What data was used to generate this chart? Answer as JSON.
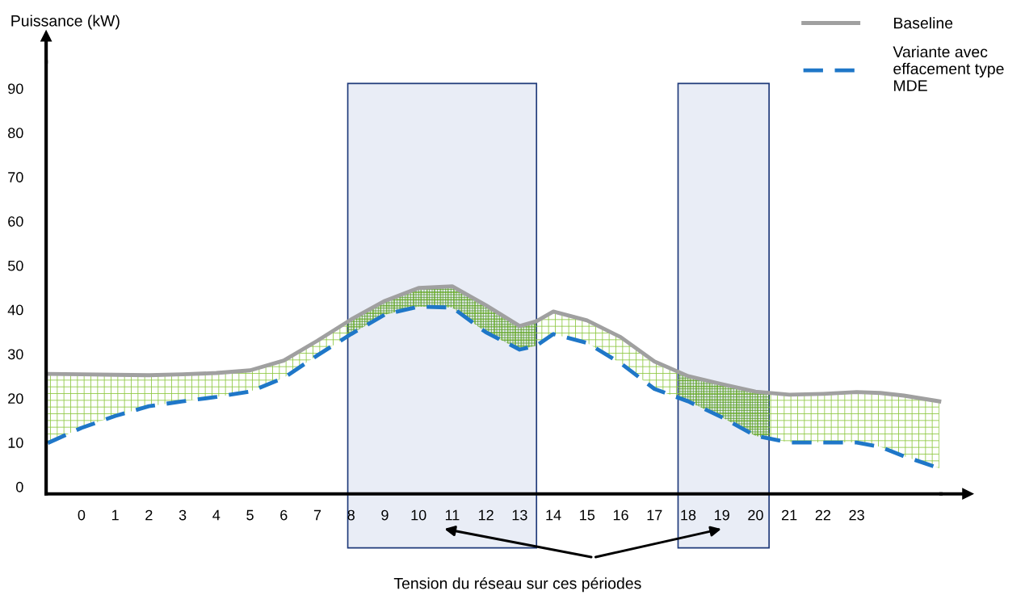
{
  "chart_data": {
    "type": "line",
    "ylabel": "Puissance (kW)",
    "xlim": [
      -1.05,
      25.5
    ],
    "ylim": [
      -1.6,
      96
    ],
    "xticks": [
      0,
      1,
      2,
      3,
      4,
      5,
      6,
      7,
      8,
      9,
      10,
      11,
      12,
      13,
      14,
      15,
      16,
      17,
      18,
      19,
      20,
      21,
      22,
      23
    ],
    "yticks": [
      0,
      10,
      20,
      30,
      40,
      50,
      60,
      70,
      80,
      90
    ],
    "grid": false,
    "legend": "top right",
    "bands": [
      {
        "axis": "x",
        "from": 7.9,
        "to": 13.5,
        "color": "#e9edf6"
      },
      {
        "axis": "x",
        "from": 17.7,
        "to": 20.4,
        "color": "#e9edf6"
      }
    ],
    "annotations": [
      "Tension du réseau sur ces périodes"
    ],
    "series": [
      {
        "name": "Baseline",
        "color": "#a0a0a0",
        "line_style": "solid",
        "x": [
          -1,
          0,
          1,
          2,
          3,
          4,
          5,
          6,
          7,
          8,
          9,
          10,
          11,
          12,
          13,
          13.5,
          14,
          15,
          16,
          17,
          18,
          19,
          20,
          21,
          22,
          23,
          23.7,
          24.4,
          25.45
        ],
        "values": [
          25.5,
          25.4,
          25.3,
          25.2,
          25.4,
          25.7,
          26.3,
          28.5,
          33,
          37.8,
          42,
          44.9,
          45.3,
          41,
          36.3,
          37.4,
          39.6,
          37.6,
          33.8,
          28.3,
          25,
          23.2,
          21.5,
          20.8,
          21,
          21.4,
          21.2,
          20.6,
          19.3
        ],
        "lower": [
          9.9,
          13.3,
          16,
          18.2,
          19.3,
          20.3,
          21.5,
          24.6,
          29.7,
          34.5,
          38.9,
          40.7,
          40.5,
          34.9,
          31,
          31.9,
          34.5,
          32.5,
          27.9,
          22.1,
          19.3,
          15.7,
          11.5,
          10,
          10,
          10,
          9,
          6.9,
          4.2
        ],
        "upper": [
          25.5,
          25.4,
          25.3,
          25.2,
          25.4,
          25.7,
          26.3,
          28.5,
          33,
          37.8,
          42,
          44.9,
          45.3,
          41,
          36.3,
          37.4,
          39.6,
          37.6,
          33.8,
          28.3,
          25,
          23.2,
          21.5,
          20.8,
          21,
          21.4,
          21.2,
          20.6,
          19.3
        ]
      },
      {
        "name": "Variante avec\neffacement type\nMDE",
        "color": "#1f77c8",
        "line_style": "dashed",
        "x": [
          -1,
          0,
          1,
          2,
          3,
          4,
          5,
          6,
          7,
          8,
          9,
          10,
          11,
          12,
          13,
          13.5,
          14,
          15,
          16,
          17,
          18,
          19,
          20,
          21,
          22,
          23,
          23.7,
          24.4,
          25.45
        ],
        "values": [
          9.9,
          13.3,
          16,
          18.2,
          19.3,
          20.3,
          21.5,
          24.6,
          29.7,
          34.5,
          38.9,
          40.7,
          40.5,
          34.9,
          31,
          31.9,
          34.5,
          32.5,
          27.9,
          22.1,
          19.3,
          15.7,
          11.5,
          10,
          10,
          10,
          9,
          6.9,
          4.2
        ]
      }
    ]
  }
}
